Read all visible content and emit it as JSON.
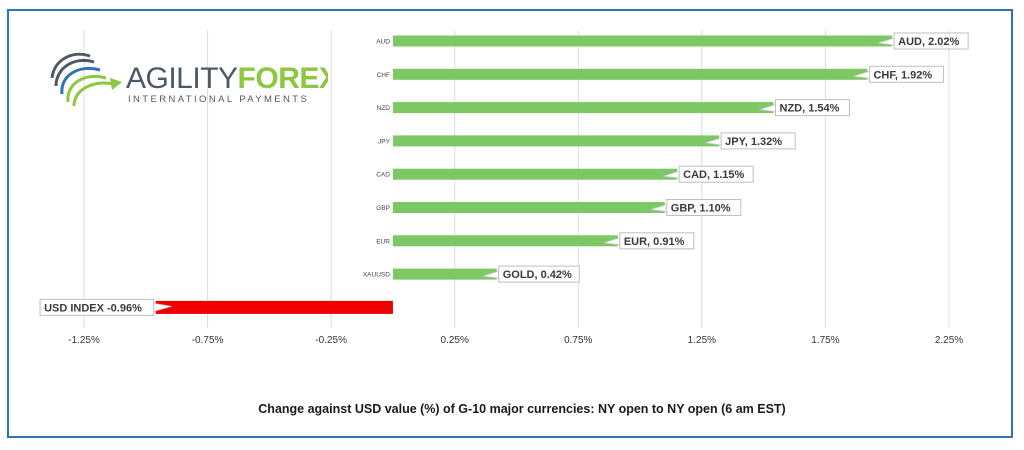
{
  "brand": {
    "name_part1": "AGILITY",
    "name_part2": "FOREX",
    "tagline": "INTERNATIONAL PAYMENTS",
    "colors": {
      "dark": "#4d5a66",
      "green": "#8dc63f",
      "blue": "#2e75b6"
    }
  },
  "chart_data": {
    "type": "bar",
    "orientation": "horizontal",
    "title": "Change against  USD value (%)  of  G-10 major currencies:  NY open to NY open  (6 am EST)",
    "xlim": [
      -1.25,
      2.25
    ],
    "x_ticks": [
      "-1.25%",
      "-0.75%",
      "-0.25%",
      "0.25%",
      "0.75%",
      "1.25%",
      "1.75%",
      "2.25%"
    ],
    "x_tick_values": [
      -1.25,
      -0.75,
      -0.25,
      0.25,
      0.75,
      1.25,
      1.75,
      2.25
    ],
    "grid": true,
    "categories": [
      "AUD",
      "CHF",
      "NZD",
      "JPY",
      "CAD",
      "GBP",
      "EUR",
      "XAUUSD",
      ""
    ],
    "values": [
      2.02,
      1.92,
      1.54,
      1.32,
      1.15,
      1.1,
      0.91,
      0.42,
      -0.96
    ],
    "data_labels": [
      "AUD, 2.02%",
      "CHF, 1.92%",
      "NZD, 1.54%",
      "JPY, 1.32%",
      "CAD, 1.15%",
      "GBP, 1.10%",
      "EUR, 0.91%",
      "GOLD, 0.42%",
      "USD INDEX -0.96%"
    ],
    "colors": {
      "positive": "#7cc865",
      "negative": "#ee0000"
    }
  }
}
